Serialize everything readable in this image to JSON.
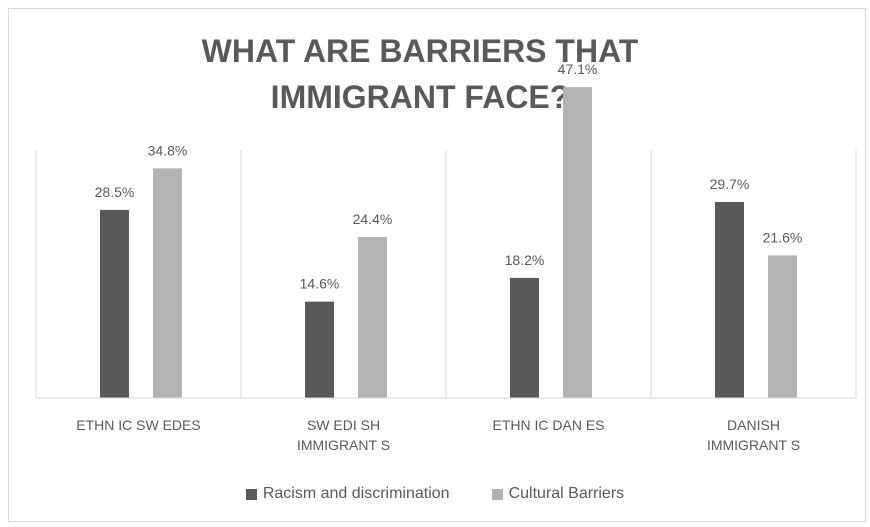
{
  "chart_data": {
    "type": "bar",
    "title": "WHAT ARE BARRIERS THAT\nIMMIGRANT FACE?",
    "categories": [
      [
        "ETHN IC SW EDES"
      ],
      [
        "SW EDI SH",
        "IMMIGRANT S"
      ],
      [
        "ETHN IC DAN ES"
      ],
      [
        "DANISH",
        "IMMIGRANT S"
      ]
    ],
    "series": [
      {
        "name": "Racism and discrimination",
        "color": "#595959",
        "values": [
          28.5,
          14.6,
          18.2,
          29.7
        ]
      },
      {
        "name": "Cultural Barriers",
        "color": "#b3b3b3",
        "values": [
          34.8,
          24.4,
          47.1,
          21.6
        ]
      }
    ],
    "value_format": "percent-1dp",
    "ylim": [
      0,
      50
    ],
    "grid": false,
    "category_separators": true,
    "legend_position": "bottom"
  }
}
